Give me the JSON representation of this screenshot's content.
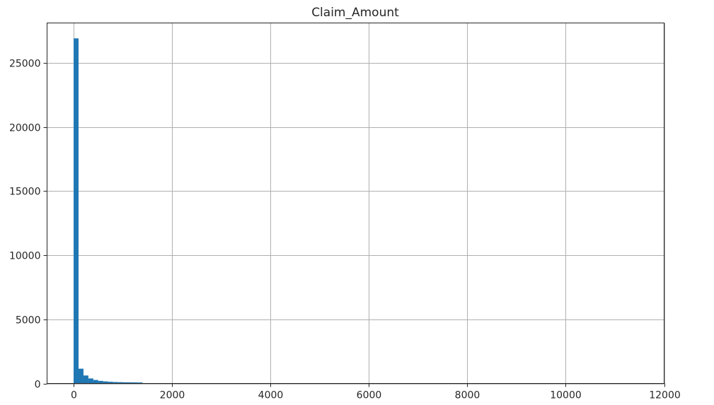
{
  "chart_data": {
    "type": "bar",
    "title": "Claim_Amount",
    "xlabel": "",
    "ylabel": "",
    "xlim": [
      -540,
      12000
    ],
    "ylim": [
      0,
      28100
    ],
    "grid": true,
    "bar_color": "#1f77b4",
    "x_ticks": [
      0,
      2000,
      4000,
      6000,
      8000,
      10000,
      12000
    ],
    "y_ticks": [
      0,
      5000,
      10000,
      15000,
      20000,
      25000
    ],
    "bin_width": 100,
    "bins": [
      {
        "x": 0,
        "count": 26900
      },
      {
        "x": 100,
        "count": 1150
      },
      {
        "x": 200,
        "count": 620
      },
      {
        "x": 300,
        "count": 390
      },
      {
        "x": 400,
        "count": 270
      },
      {
        "x": 500,
        "count": 200
      },
      {
        "x": 600,
        "count": 160
      },
      {
        "x": 700,
        "count": 130
      },
      {
        "x": 800,
        "count": 110
      },
      {
        "x": 900,
        "count": 100
      },
      {
        "x": 1000,
        "count": 90
      },
      {
        "x": 1100,
        "count": 85
      },
      {
        "x": 1200,
        "count": 80
      },
      {
        "x": 1300,
        "count": 75
      },
      {
        "x": 1400,
        "count": 10
      },
      {
        "x": 1500,
        "count": 5
      },
      {
        "x": 1600,
        "count": 4
      },
      {
        "x": 1700,
        "count": 3
      },
      {
        "x": 1800,
        "count": 3
      }
    ]
  }
}
